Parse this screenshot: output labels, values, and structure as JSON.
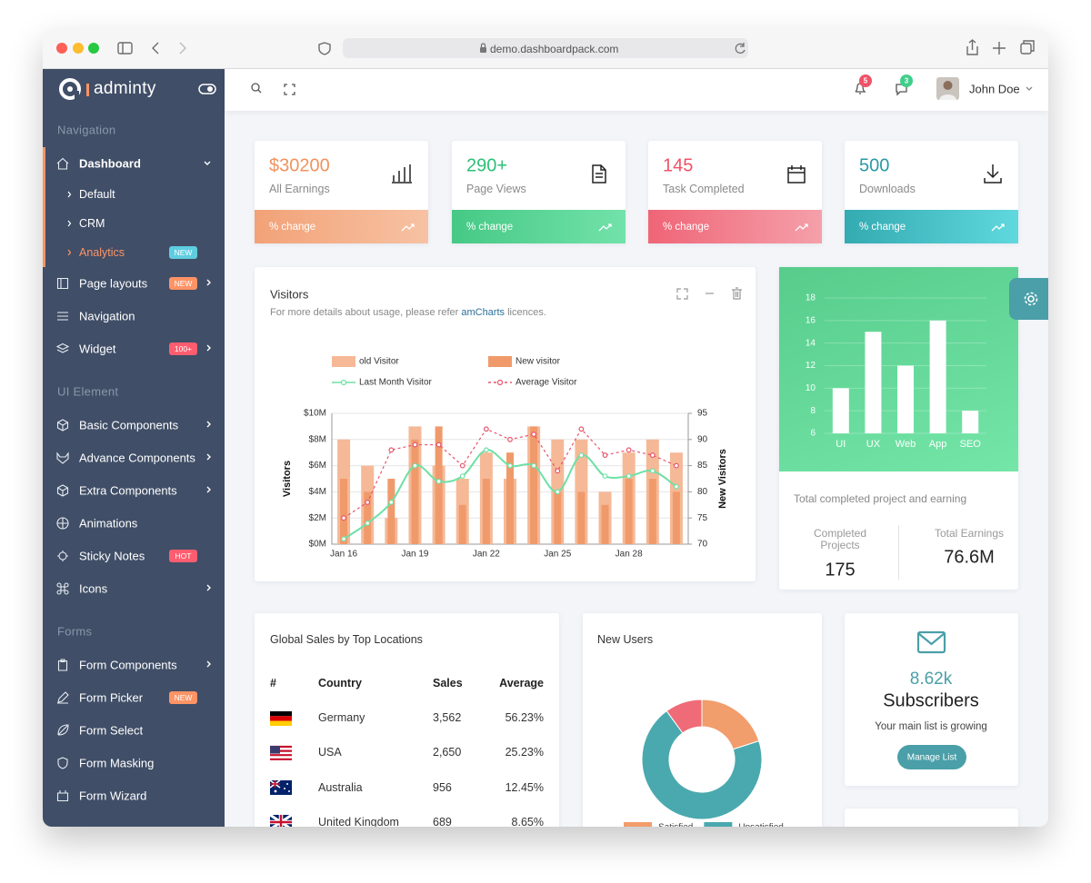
{
  "browser": {
    "url": "demo.dashboardpack.com"
  },
  "sidebar": {
    "brand": "adminty",
    "groups": [
      {
        "title": "Navigation",
        "items": [
          {
            "label": "Dashboard",
            "submenu": [
              {
                "label": "Default"
              },
              {
                "label": "CRM"
              },
              {
                "label": "Analytics",
                "badge": "NEW",
                "badge_color": "#5fcde0"
              }
            ]
          },
          {
            "label": "Page layouts",
            "badge": "NEW",
            "badge_color": "#fe9365"
          },
          {
            "label": "Navigation"
          },
          {
            "label": "Widget",
            "badge": "100+",
            "badge_color": "#fe5d70"
          }
        ]
      },
      {
        "title": "UI Element",
        "items": [
          {
            "label": "Basic Components"
          },
          {
            "label": "Advance Components"
          },
          {
            "label": "Extra Components"
          },
          {
            "label": "Animations"
          },
          {
            "label": "Sticky Notes",
            "badge": "HOT",
            "badge_color": "#fe5d70"
          },
          {
            "label": "Icons"
          }
        ]
      },
      {
        "title": "Forms",
        "items": [
          {
            "label": "Form Components"
          },
          {
            "label": "Form Picker",
            "badge": "NEW",
            "badge_color": "#fe9365"
          },
          {
            "label": "Form Select"
          },
          {
            "label": "Form Masking"
          },
          {
            "label": "Form Wizard"
          }
        ]
      }
    ]
  },
  "header": {
    "notifications": 5,
    "messages": 3,
    "user": "John Doe"
  },
  "stats": [
    {
      "value": "$30200",
      "label": "All Earnings",
      "footer": "% change",
      "color": "#f0935f"
    },
    {
      "value": "290+",
      "label": "Page Views",
      "footer": "% change",
      "color": "#2ebf76"
    },
    {
      "value": "145",
      "label": "Task Completed",
      "footer": "% change",
      "color": "#ee5367"
    },
    {
      "value": "500",
      "label": "Downloads",
      "footer": "% change",
      "color": "#2a9aa6"
    }
  ],
  "visitors": {
    "title": "Visitors",
    "subtitle": "For more details about usage, please refer",
    "link": "amCharts",
    "subtitle_end": "licences.",
    "chart": {
      "type": "bar",
      "x": [
        "Jan 16",
        null,
        null,
        "Jan 19",
        null,
        null,
        "Jan 22",
        null,
        null,
        "Jan 25",
        null,
        null,
        "Jan 28",
        null,
        null
      ],
      "series": [
        {
          "name": "old Visitor",
          "color": "#f5b997",
          "values": [
            8,
            6,
            2,
            9,
            6,
            5,
            7,
            5,
            9,
            8,
            8,
            4,
            7,
            8,
            7
          ]
        },
        {
          "name": "New visitor",
          "color": "#f09a6b",
          "values": [
            5,
            4,
            5,
            8,
            9,
            3,
            5,
            7,
            9,
            4,
            4,
            3,
            5,
            5,
            4
          ]
        },
        {
          "name": "Last Month Visitor",
          "type": "line",
          "axis": "y2",
          "color": "#6fe0a5",
          "smooth": true,
          "values": [
            71,
            74,
            78,
            85,
            82,
            83,
            88,
            85,
            85,
            80,
            87,
            83,
            83,
            84,
            81
          ]
        },
        {
          "name": "Average Visitor",
          "type": "line",
          "axis": "y2",
          "color": "#e8546b",
          "dashed": true,
          "values": [
            75,
            78,
            88,
            89,
            89,
            85,
            92,
            90,
            91,
            84,
            92,
            87,
            88,
            87,
            85
          ]
        }
      ],
      "ylim": [
        0,
        10
      ],
      "yticks": [
        {
          "value": 0,
          "label": "$0M"
        },
        {
          "value": 2,
          "label": "$2M"
        },
        {
          "value": 4,
          "label": "$4M"
        },
        {
          "value": 6,
          "label": "$6M"
        },
        {
          "value": 8,
          "label": "$8M"
        },
        {
          "value": 10,
          "label": "$10M"
        }
      ],
      "y2lim": [
        70,
        95
      ],
      "y2ticks": [
        70,
        75,
        80,
        85,
        90,
        95
      ],
      "ylabel": "Visitors",
      "y2label": "New Visitors",
      "grid": true
    }
  },
  "projects": {
    "chart": {
      "type": "bar",
      "categories": [
        "UI",
        "UX",
        "Web",
        "App",
        "SEO"
      ],
      "values": [
        10,
        15,
        12,
        16,
        8
      ],
      "color": "#ffffff",
      "ylim": [
        6,
        18
      ],
      "yticks": [
        6,
        8,
        10,
        12,
        14,
        16,
        18
      ],
      "grid": true
    },
    "caption": "Total completed project and earning",
    "completed_label": "Completed Projects",
    "completed": 175,
    "earnings_label": "Total Earnings",
    "earnings": "76.6M"
  },
  "sales_table": {
    "title": "Global Sales by Top Locations",
    "columns": [
      "#",
      "Country",
      "Sales",
      "Average"
    ],
    "rows": [
      [
        "Germany",
        "3,562",
        "56.23%"
      ],
      [
        "USA",
        "2,650",
        "25.23%"
      ],
      [
        "Australia",
        "956",
        "12.45%"
      ],
      [
        "United Kingdom",
        "689",
        "8.65%"
      ]
    ]
  },
  "new_users": {
    "title": "New Users",
    "chart": {
      "type": "donut",
      "categories": [
        "Satisfied",
        "Unsatisfied",
        null
      ],
      "values": [
        20,
        70,
        10
      ],
      "colors": [
        "#f29d6c",
        "#4aa9ae",
        "#ee6b77"
      ]
    }
  },
  "subscribers": {
    "value": "8.62k",
    "title": "Subscribers",
    "text": "Your main list is growing",
    "button": "Manage List"
  }
}
